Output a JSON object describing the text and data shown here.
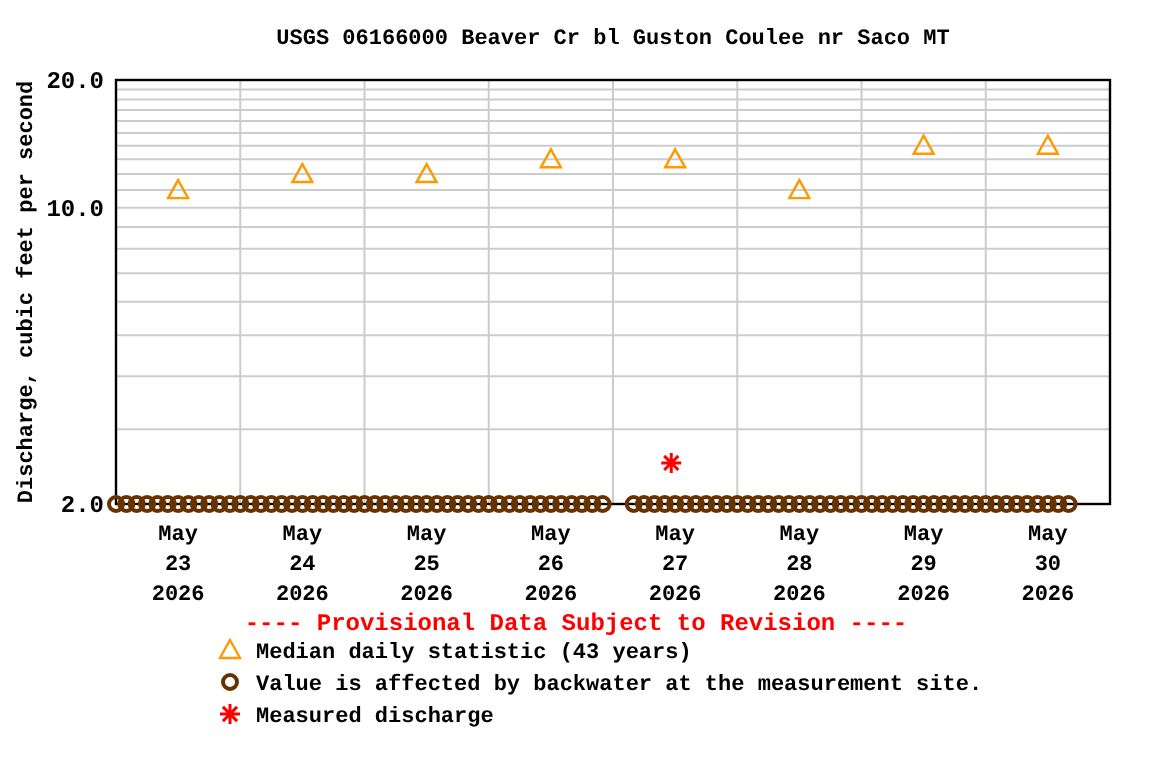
{
  "chart_data": {
    "type": "scatter",
    "title": "USGS 06166000 Beaver Cr bl Guston Coulee nr Saco MT",
    "ylabel": "Discharge, cubic feet per second",
    "log": "y",
    "grid": true,
    "legend": "bottom",
    "annotations": [
      "---- Provisional Data Subject to Revision ----"
    ],
    "xlim": [
      "2026-05-23T00:00",
      "2026-05-31T00:00"
    ],
    "xticks": [
      {
        "value": "2026-05-23T12:00",
        "label": "May\n23\n2026"
      },
      {
        "value": "2026-05-24T12:00",
        "label": "May\n24\n2026"
      },
      {
        "value": "2026-05-25T12:00",
        "label": "May\n25\n2026"
      },
      {
        "value": "2026-05-26T12:00",
        "label": "May\n26\n2026"
      },
      {
        "value": "2026-05-27T12:00",
        "label": "May\n27\n2026"
      },
      {
        "value": "2026-05-28T12:00",
        "label": "May\n28\n2026"
      },
      {
        "value": "2026-05-29T12:00",
        "label": "May\n29\n2026"
      },
      {
        "value": "2026-05-30T12:00",
        "label": "May\n30\n2026"
      },
      {
        "value": "2026-05-24T00:00",
        "label": null
      },
      {
        "value": "2026-05-25T00:00",
        "label": null
      },
      {
        "value": "2026-05-26T00:00",
        "label": null
      },
      {
        "value": "2026-05-27T00:00",
        "label": null
      },
      {
        "value": "2026-05-28T00:00",
        "label": null
      },
      {
        "value": "2026-05-29T00:00",
        "label": null
      },
      {
        "value": "2026-05-30T00:00",
        "label": null
      }
    ],
    "ylim": [
      2,
      20
    ],
    "yticks": [
      {
        "value": 2,
        "label": "2.0"
      },
      {
        "value": 10,
        "label": "10.0"
      },
      {
        "value": 20,
        "label": "20.0"
      },
      {
        "value": 3,
        "label": null
      },
      {
        "value": 4,
        "label": null
      },
      {
        "value": 5,
        "label": null
      },
      {
        "value": 6,
        "label": null
      },
      {
        "value": 7,
        "label": null
      },
      {
        "value": 8,
        "label": null
      },
      {
        "value": 9,
        "label": null
      },
      {
        "value": 11,
        "label": null
      },
      {
        "value": 12,
        "label": null
      },
      {
        "value": 13,
        "label": null
      },
      {
        "value": 14,
        "label": null
      },
      {
        "value": 15,
        "label": null
      },
      {
        "value": 16,
        "label": null
      },
      {
        "value": 17,
        "label": null
      },
      {
        "value": 18,
        "label": null
      },
      {
        "value": 19,
        "label": null
      }
    ],
    "series": [
      {
        "name": "Median daily statistic (43 years)",
        "color": "#ff9900",
        "marker": "triangle",
        "x": [
          "2026-05-23T12:00",
          "2026-05-24T12:00",
          "2026-05-25T12:00",
          "2026-05-26T12:00",
          "2026-05-27T12:00",
          "2026-05-28T12:00",
          "2026-05-29T12:00",
          "2026-05-30T12:00"
        ],
        "values": [
          11,
          12,
          12,
          13,
          13,
          11,
          14,
          14
        ]
      },
      {
        "name": "Value is affected by backwater at the measurement site.",
        "color": "#663300",
        "marker": "circle",
        "x": [
          "2026-05-23T00:00",
          "2026-05-23T02:00",
          "2026-05-23T04:00",
          "2026-05-23T06:00",
          "2026-05-23T08:00",
          "2026-05-23T10:00",
          "2026-05-23T12:00",
          "2026-05-23T14:00",
          "2026-05-23T16:00",
          "2026-05-23T18:00",
          "2026-05-23T20:00",
          "2026-05-23T22:00",
          "2026-05-24T00:00",
          "2026-05-24T02:00",
          "2026-05-24T04:00",
          "2026-05-24T06:00",
          "2026-05-24T08:00",
          "2026-05-24T10:00",
          "2026-05-24T12:00",
          "2026-05-24T14:00",
          "2026-05-24T16:00",
          "2026-05-24T18:00",
          "2026-05-24T20:00",
          "2026-05-24T22:00",
          "2026-05-25T00:00",
          "2026-05-25T02:00",
          "2026-05-25T04:00",
          "2026-05-25T06:00",
          "2026-05-25T08:00",
          "2026-05-25T10:00",
          "2026-05-25T12:00",
          "2026-05-25T14:00",
          "2026-05-25T16:00",
          "2026-05-25T18:00",
          "2026-05-25T20:00",
          "2026-05-25T22:00",
          "2026-05-26T00:00",
          "2026-05-26T02:00",
          "2026-05-26T04:00",
          "2026-05-26T06:00",
          "2026-05-26T08:00",
          "2026-05-26T10:00",
          "2026-05-26T12:00",
          "2026-05-26T14:00",
          "2026-05-26T16:00",
          "2026-05-26T18:00",
          "2026-05-26T20:00",
          "2026-05-26T22:00",
          "2026-05-27T04:00",
          "2026-05-27T06:00",
          "2026-05-27T08:00",
          "2026-05-27T10:00",
          "2026-05-27T12:00",
          "2026-05-27T14:00",
          "2026-05-27T16:00",
          "2026-05-27T18:00",
          "2026-05-27T20:00",
          "2026-05-27T22:00",
          "2026-05-28T00:00",
          "2026-05-28T02:00",
          "2026-05-28T04:00",
          "2026-05-28T06:00",
          "2026-05-28T08:00",
          "2026-05-28T10:00",
          "2026-05-28T12:00",
          "2026-05-28T14:00",
          "2026-05-28T16:00",
          "2026-05-28T18:00",
          "2026-05-28T20:00",
          "2026-05-28T22:00",
          "2026-05-29T00:00",
          "2026-05-29T02:00",
          "2026-05-29T04:00",
          "2026-05-29T06:00",
          "2026-05-29T08:00",
          "2026-05-29T10:00",
          "2026-05-29T12:00",
          "2026-05-29T14:00",
          "2026-05-29T16:00",
          "2026-05-29T18:00",
          "2026-05-29T20:00",
          "2026-05-29T22:00",
          "2026-05-30T00:00",
          "2026-05-30T02:00",
          "2026-05-30T04:00",
          "2026-05-30T06:00",
          "2026-05-30T08:00",
          "2026-05-30T10:00",
          "2026-05-30T12:00",
          "2026-05-30T14:00",
          "2026-05-30T16:00"
        ],
        "values": [
          2,
          2,
          2,
          2,
          2,
          2,
          2,
          2,
          2,
          2,
          2,
          2,
          2,
          2,
          2,
          2,
          2,
          2,
          2,
          2,
          2,
          2,
          2,
          2,
          2,
          2,
          2,
          2,
          2,
          2,
          2,
          2,
          2,
          2,
          2,
          2,
          2,
          2,
          2,
          2,
          2,
          2,
          2,
          2,
          2,
          2,
          2,
          2,
          2,
          2,
          2,
          2,
          2,
          2,
          2,
          2,
          2,
          2,
          2,
          2,
          2,
          2,
          2,
          2,
          2,
          2,
          2,
          2,
          2,
          2,
          2,
          2,
          2,
          2,
          2,
          2,
          2,
          2,
          2,
          2,
          2,
          2,
          2,
          2,
          2,
          2,
          2,
          2,
          2,
          2,
          2
        ]
      },
      {
        "name": "Measured discharge",
        "color": "#ff0000",
        "marker": "cross",
        "x": [
          "2026-05-27T11:15"
        ],
        "values": [
          2.5
        ]
      }
    ]
  }
}
